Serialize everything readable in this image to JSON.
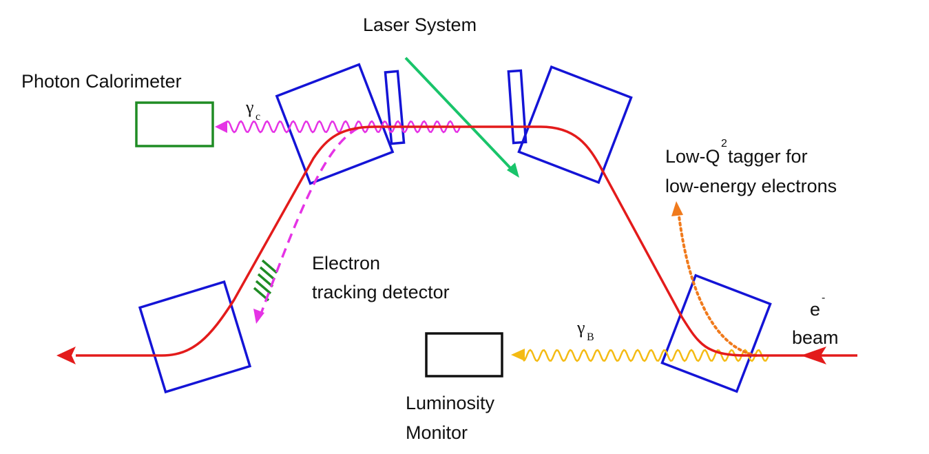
{
  "labels": {
    "laser_system": "Laser System",
    "photon_calorimeter": "Photon Calorimeter",
    "tagger_line1_pre": "Low-Q",
    "tagger_line1_sup": "2",
    "tagger_line1_post": " tagger for",
    "tagger_line2": "low-energy electrons",
    "electron_tracker_line1": "Electron",
    "electron_tracker_line2": "tracking detector",
    "luminosity_line1": "Luminosity",
    "luminosity_line2": "Monitor",
    "beam_symbol": "e",
    "beam_charge": "-",
    "beam_word": "beam",
    "gamma_c_symbol": "γ",
    "gamma_c_sub": "c",
    "gamma_b_symbol": "γ",
    "gamma_b_sub": "B"
  },
  "colors": {
    "beam": "#e31b1b",
    "magnet": "#1414d6",
    "laser": "#19c46a",
    "compton_photon": "#e533e5",
    "bremsstrahlung_photon": "#f4bb14",
    "low_q2_electron": "#f07a1c",
    "calorimeter": "#1f8c24",
    "tracker": "#1f8c24",
    "luminosity_monitor": "#111111"
  },
  "icons": {
    "beam_arrow": "arrow-left-icon",
    "photon_wave": "wavy-arrow-icon"
  }
}
